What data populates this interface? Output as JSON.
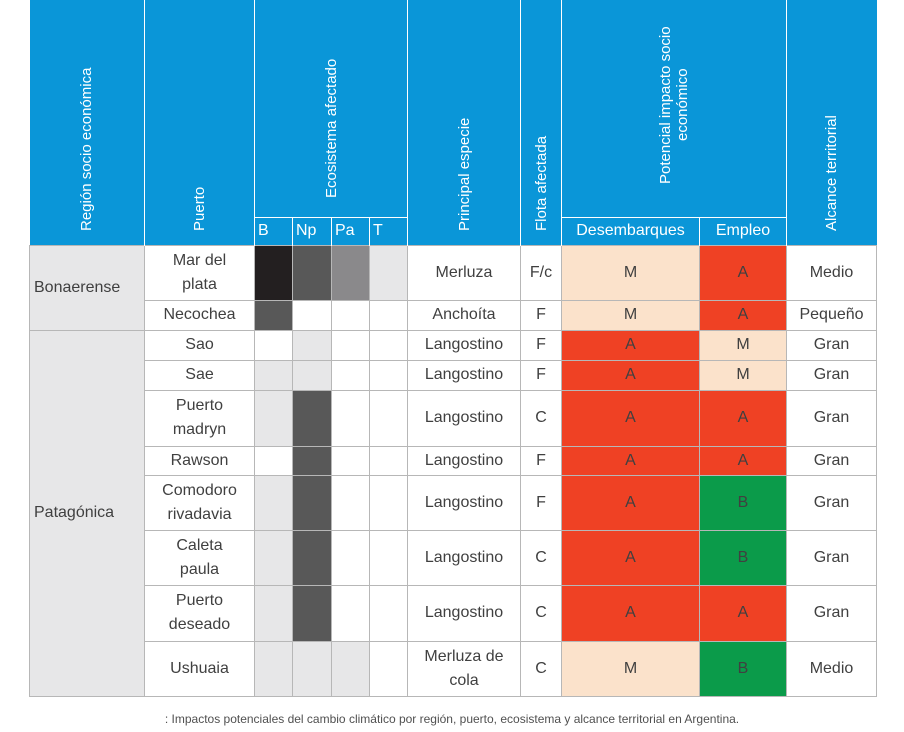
{
  "header": {
    "region": "Región socio económica",
    "puerto": "Puerto",
    "ecosistema": "Ecosistema afectado",
    "eco_cols": [
      "B",
      "Np",
      "Pa",
      "T"
    ],
    "especie": "Principal especie",
    "flota": "Flota afectada",
    "impacto_line1": "Potencial impacto socio",
    "impacto_line2": "económico",
    "desembarques": "Desembarques",
    "empleo": "Empleo",
    "alcance": "Alcance territorial"
  },
  "regions": [
    "Bonaerense",
    "Patagónica"
  ],
  "rows": [
    {
      "puerto": [
        "Mar del",
        "plata"
      ],
      "eco": [
        "black",
        "dark",
        "mid",
        "light"
      ],
      "especie": [
        "Merluza"
      ],
      "flota": "F/c",
      "desembarques": "M",
      "empleo": "A",
      "alcance": "Medio"
    },
    {
      "puerto": [
        "Necochea"
      ],
      "eco": [
        "dark",
        "white",
        "white",
        "white"
      ],
      "especie": [
        "Anchoíta"
      ],
      "flota": "F",
      "desembarques": "M",
      "empleo": "A",
      "alcance": "Pequeño"
    },
    {
      "puerto": [
        "Sao"
      ],
      "eco": [
        "white",
        "light",
        "white",
        "white"
      ],
      "especie": [
        "Langostino"
      ],
      "flota": "F",
      "desembarques": "A",
      "empleo": "M",
      "alcance": "Gran"
    },
    {
      "puerto": [
        "Sae"
      ],
      "eco": [
        "light",
        "light",
        "white",
        "white"
      ],
      "especie": [
        "Langostino"
      ],
      "flota": "F",
      "desembarques": "A",
      "empleo": "M",
      "alcance": "Gran"
    },
    {
      "puerto": [
        "Puerto",
        "madryn"
      ],
      "eco": [
        "light",
        "dark",
        "white",
        "white"
      ],
      "especie": [
        "Langostino"
      ],
      "flota": "C",
      "desembarques": "A",
      "empleo": "A",
      "alcance": "Gran"
    },
    {
      "puerto": [
        "Rawson"
      ],
      "eco": [
        "white",
        "dark",
        "white",
        "white"
      ],
      "especie": [
        "Langostino"
      ],
      "flota": "F",
      "desembarques": "A",
      "empleo": "A",
      "alcance": "Gran"
    },
    {
      "puerto": [
        "Comodoro",
        "rivadavia"
      ],
      "eco": [
        "light",
        "dark",
        "white",
        "white"
      ],
      "especie": [
        "Langostino"
      ],
      "flota": "F",
      "desembarques": "A",
      "empleo": "B",
      "alcance": "Gran"
    },
    {
      "puerto": [
        "Caleta",
        "paula"
      ],
      "eco": [
        "light",
        "dark",
        "white",
        "white"
      ],
      "especie": [
        "Langostino"
      ],
      "flota": "C",
      "desembarques": "A",
      "empleo": "B",
      "alcance": "Gran"
    },
    {
      "puerto": [
        "Puerto",
        "deseado"
      ],
      "eco": [
        "light",
        "dark",
        "white",
        "white"
      ],
      "especie": [
        "Langostino"
      ],
      "flota": "C",
      "desembarques": "A",
      "empleo": "A",
      "alcance": "Gran"
    },
    {
      "puerto": [
        "Ushuaia"
      ],
      "eco": [
        "light",
        "light",
        "light",
        "white"
      ],
      "especie": [
        "Merluza de",
        "cola"
      ],
      "flota": "C",
      "desembarques": "M",
      "empleo": "B",
      "alcance": "Medio"
    }
  ],
  "caption": ": Impactos potenciales del cambio climático por región, puerto, ecosistema y alcance territorial en Argentina."
}
